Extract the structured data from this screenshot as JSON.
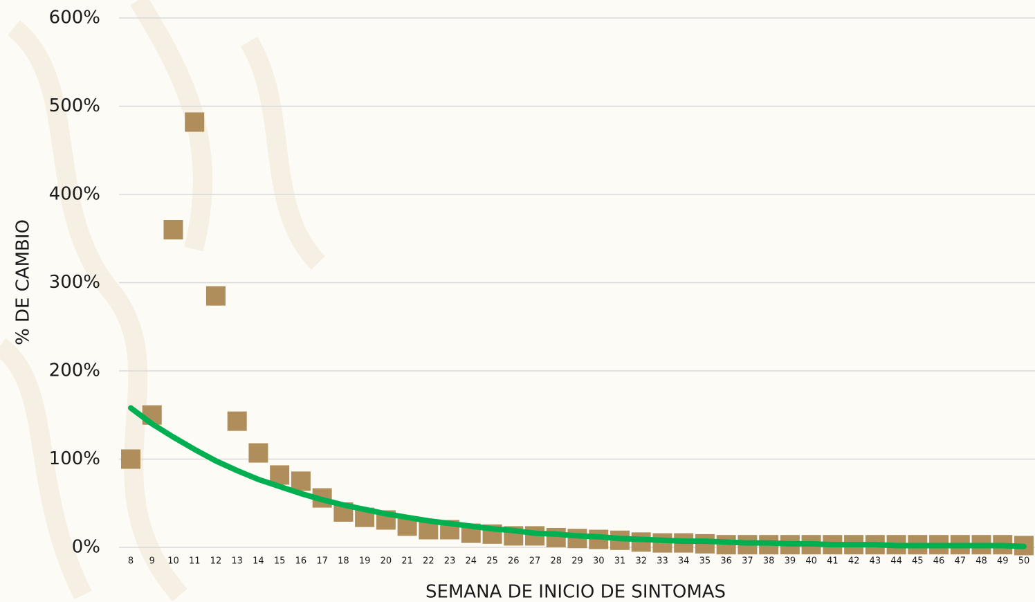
{
  "chart_data": {
    "type": "scatter",
    "x_label": "SEMANA DE INICIO DE SINTOMAS",
    "y_label": "% DE CAMBIO",
    "categories": [
      "8",
      "9",
      "10",
      "11",
      "12",
      "13",
      "14",
      "15",
      "16",
      "17",
      "18",
      "19",
      "20",
      "21",
      "22",
      "23",
      "24",
      "25",
      "26",
      "27",
      "28",
      "29",
      "30",
      "31",
      "32",
      "33",
      "34",
      "35",
      "36",
      "37",
      "38",
      "39",
      "40",
      "41",
      "42",
      "43",
      "44",
      "45",
      "46",
      "47",
      "48",
      "49",
      "50"
    ],
    "series": [
      {
        "type": "scatter",
        "color": "#b08e5c",
        "values": [
          100,
          150,
          360,
          482,
          285,
          143,
          107,
          82,
          75,
          56,
          40,
          34,
          31,
          24,
          20,
          20,
          16,
          15,
          13,
          13,
          11,
          10,
          9,
          8,
          6,
          5,
          5,
          4,
          3,
          3,
          3,
          3,
          3,
          3,
          3,
          3,
          3,
          3,
          3,
          3,
          3,
          3,
          2
        ]
      },
      {
        "type": "line",
        "color": "#00b050",
        "values": [
          158,
          140,
          125,
          111,
          98,
          87,
          77,
          69,
          61,
          54,
          48,
          43,
          38,
          34,
          30,
          27,
          24,
          21,
          19,
          16,
          15,
          13,
          12,
          10,
          9,
          8,
          7,
          7,
          6,
          5,
          5,
          4,
          4,
          3,
          3,
          3,
          2,
          2,
          2,
          2,
          2,
          2,
          1
        ]
      }
    ],
    "ylim": [
      0,
      600
    ],
    "yticks": [
      {
        "value": 0,
        "label": "0%"
      },
      {
        "value": 100,
        "label": "100%"
      },
      {
        "value": 200,
        "label": "200%"
      },
      {
        "value": 300,
        "label": "300%"
      },
      {
        "value": 400,
        "label": "400%"
      },
      {
        "value": 500,
        "label": "500%"
      },
      {
        "value": 600,
        "label": "600%"
      }
    ],
    "grid": true
  }
}
